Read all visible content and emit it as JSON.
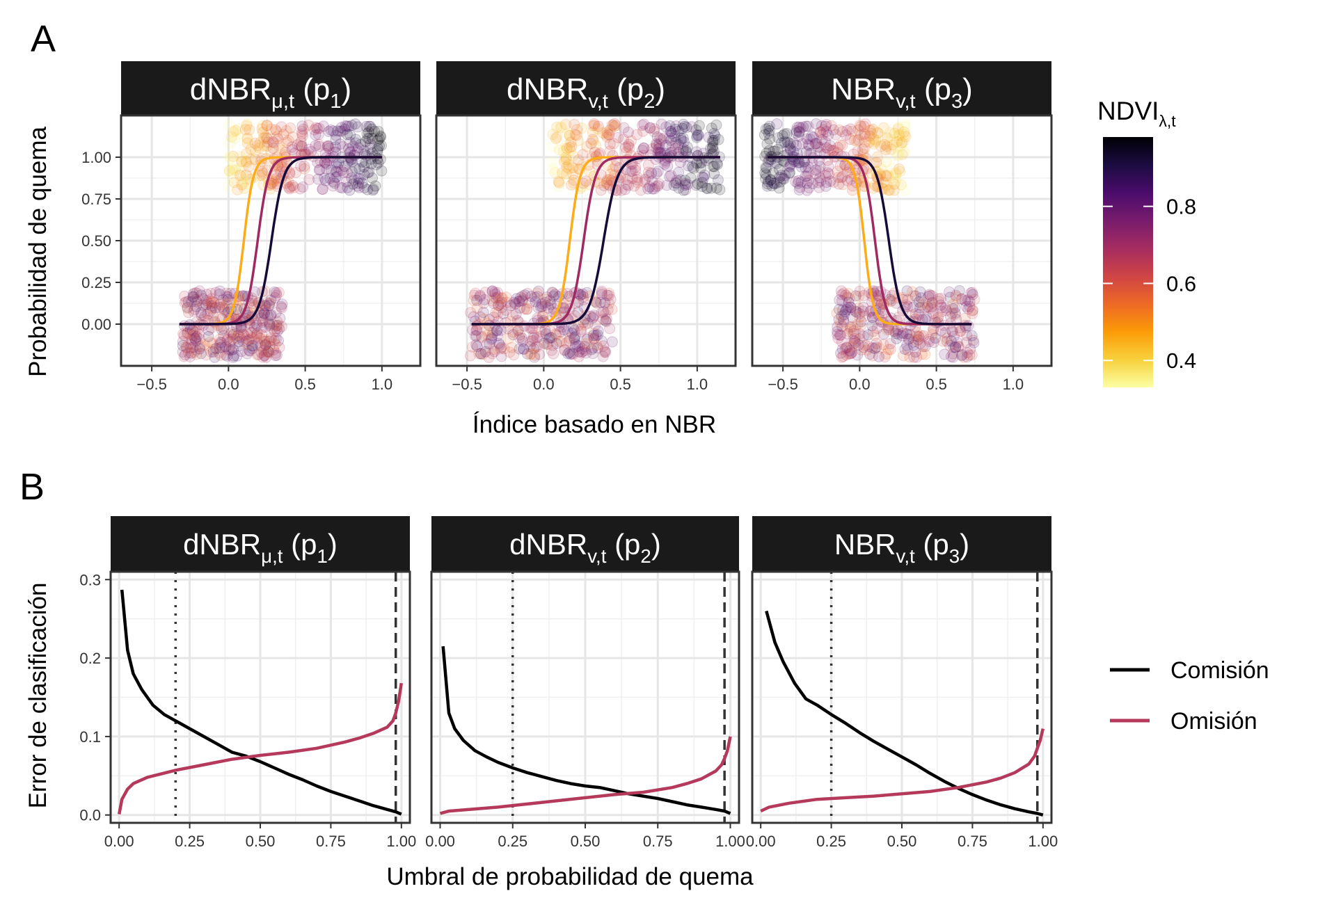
{
  "chart_data": [
    {
      "panel": "A",
      "type": "scatter",
      "xlabel": "Índice basado en NBR",
      "ylabel": "Probabilidad de quema",
      "xlim": [
        -0.7,
        1.25
      ],
      "ylim": [
        -0.25,
        1.25
      ],
      "x_ticks": [
        -0.5,
        0.0,
        0.5,
        1.0
      ],
      "x_tick_labels": [
        "−0.5",
        "0.0",
        "0.5",
        "1.0"
      ],
      "y_ticks": [
        0.0,
        0.25,
        0.5,
        0.75,
        1.0
      ],
      "y_tick_labels": [
        "0.00",
        "0.25",
        "0.50",
        "0.75",
        "1.00"
      ],
      "grid": true,
      "color_scale": {
        "title_main": "NDVI",
        "title_sub": "λ,t",
        "palette": "inferno",
        "min": 0.33,
        "max": 0.98,
        "ticks": [
          0.4,
          0.6,
          0.8
        ],
        "tick_labels": [
          "0.4",
          "0.6",
          "0.8"
        ],
        "stops": [
          "#FCFFA4",
          "#F7D13D",
          "#FB9B06",
          "#ED6925",
          "#CF4446",
          "#A52C60",
          "#781C6D",
          "#4A0C6B",
          "#1B0C41",
          "#000004"
        ]
      },
      "facets": [
        {
          "label_main": "dNBR",
          "label_sub": "μ,t",
          "label_tail": " (p",
          "label_index": "1",
          "label_close": ")",
          "direction": "increasing",
          "burned_range": [
            0.0,
            1.0
          ],
          "unburned_range": [
            -0.3,
            0.35
          ],
          "curves": [
            {
              "ndvi": 0.45,
              "x": [
                -0.32,
                1.0
              ],
              "midpoint": 0.1,
              "slope": 32
            },
            {
              "ndvi": 0.7,
              "x": [
                -0.32,
                1.0
              ],
              "midpoint": 0.19,
              "slope": 28
            },
            {
              "ndvi": 0.92,
              "x": [
                -0.32,
                1.0
              ],
              "midpoint": 0.28,
              "slope": 25
            }
          ]
        },
        {
          "label_main": "dNBR",
          "label_sub": "v,t",
          "label_tail": " (p",
          "label_index": "2",
          "label_close": ")",
          "direction": "increasing",
          "burned_range": [
            0.05,
            1.15
          ],
          "unburned_range": [
            -0.48,
            0.45
          ],
          "curves": [
            {
              "ndvi": 0.45,
              "x": [
                -0.47,
                1.15
              ],
              "midpoint": 0.17,
              "slope": 30
            },
            {
              "ndvi": 0.7,
              "x": [
                -0.47,
                1.15
              ],
              "midpoint": 0.26,
              "slope": 26
            },
            {
              "ndvi": 0.92,
              "x": [
                -0.47,
                1.15
              ],
              "midpoint": 0.39,
              "slope": 22
            }
          ]
        },
        {
          "label_main": "NBR",
          "label_sub": "v,t",
          "label_tail": " (p",
          "label_index": "3",
          "label_close": ")",
          "direction": "decreasing",
          "burned_range": [
            -0.62,
            0.3
          ],
          "unburned_range": [
            -0.15,
            0.75
          ],
          "curves": [
            {
              "ndvi": 0.45,
              "x": [
                -0.6,
                0.73
              ],
              "midpoint": 0.03,
              "slope": 34
            },
            {
              "ndvi": 0.7,
              "x": [
                -0.6,
                0.73
              ],
              "midpoint": 0.1,
              "slope": 30
            },
            {
              "ndvi": 0.92,
              "x": [
                -0.6,
                0.73
              ],
              "midpoint": 0.19,
              "slope": 26
            }
          ]
        }
      ]
    },
    {
      "panel": "B",
      "type": "line",
      "xlabel": "Umbral de probabilidad de quema",
      "ylabel": "Error de clasificación",
      "xlim": [
        -0.03,
        1.03
      ],
      "ylim": [
        -0.01,
        0.31
      ],
      "x_ticks": [
        0.0,
        0.25,
        0.5,
        0.75,
        1.0
      ],
      "x_tick_labels": [
        "0.00",
        "0.25",
        "0.50",
        "0.75",
        "1.00"
      ],
      "y_ticks": [
        0.0,
        0.1,
        0.2,
        0.3
      ],
      "y_tick_labels": [
        "0.0",
        "0.1",
        "0.2",
        "0.3"
      ],
      "grid": true,
      "legend": {
        "placement": "right",
        "entries": [
          {
            "name": "Comisión",
            "color": "#000000"
          },
          {
            "name": "Omisión",
            "color": "#B5395B"
          }
        ]
      },
      "facets": [
        {
          "label_main": "dNBR",
          "label_sub": "μ,t",
          "label_tail": " (p",
          "label_index": "1",
          "label_close": ")",
          "dotted_x": 0.2,
          "dashed_x": 0.98,
          "series": [
            {
              "name": "Comisión",
              "x": [
                0.01,
                0.03,
                0.05,
                0.08,
                0.12,
                0.16,
                0.2,
                0.25,
                0.3,
                0.35,
                0.4,
                0.45,
                0.5,
                0.55,
                0.6,
                0.65,
                0.7,
                0.75,
                0.8,
                0.85,
                0.9,
                0.95,
                0.98,
                1.0
              ],
              "values": [
                0.287,
                0.21,
                0.18,
                0.16,
                0.14,
                0.128,
                0.12,
                0.11,
                0.1,
                0.09,
                0.08,
                0.075,
                0.068,
                0.06,
                0.052,
                0.045,
                0.037,
                0.03,
                0.024,
                0.018,
                0.012,
                0.007,
                0.004,
                0.001
              ]
            },
            {
              "name": "Omisión",
              "x": [
                0.0,
                0.01,
                0.03,
                0.05,
                0.1,
                0.2,
                0.3,
                0.4,
                0.5,
                0.6,
                0.7,
                0.8,
                0.85,
                0.9,
                0.95,
                0.97,
                0.98,
                0.99,
                1.0
              ],
              "values": [
                0.001,
                0.02,
                0.033,
                0.04,
                0.048,
                0.057,
                0.064,
                0.071,
                0.076,
                0.08,
                0.085,
                0.093,
                0.098,
                0.104,
                0.112,
                0.12,
                0.13,
                0.145,
                0.168
              ]
            }
          ]
        },
        {
          "label_main": "dNBR",
          "label_sub": "v,t",
          "label_tail": " (p",
          "label_index": "2",
          "label_close": ")",
          "dotted_x": 0.25,
          "dashed_x": 0.98,
          "series": [
            {
              "name": "Comisión",
              "x": [
                0.01,
                0.03,
                0.05,
                0.08,
                0.12,
                0.16,
                0.2,
                0.25,
                0.3,
                0.35,
                0.4,
                0.45,
                0.5,
                0.55,
                0.6,
                0.65,
                0.7,
                0.75,
                0.8,
                0.85,
                0.9,
                0.95,
                0.98,
                1.0
              ],
              "values": [
                0.215,
                0.13,
                0.11,
                0.095,
                0.082,
                0.074,
                0.067,
                0.06,
                0.054,
                0.049,
                0.044,
                0.04,
                0.037,
                0.035,
                0.031,
                0.027,
                0.024,
                0.021,
                0.017,
                0.013,
                0.01,
                0.007,
                0.005,
                0.002
              ]
            },
            {
              "name": "Omisión",
              "x": [
                0.0,
                0.03,
                0.1,
                0.2,
                0.3,
                0.4,
                0.5,
                0.6,
                0.7,
                0.8,
                0.85,
                0.9,
                0.95,
                0.97,
                0.98,
                0.99,
                1.0
              ],
              "values": [
                0.002,
                0.005,
                0.007,
                0.01,
                0.014,
                0.018,
                0.022,
                0.026,
                0.029,
                0.035,
                0.04,
                0.046,
                0.056,
                0.064,
                0.072,
                0.082,
                0.1
              ]
            }
          ]
        },
        {
          "label_main": "NBR",
          "label_sub": "v,t",
          "label_tail": " (p",
          "label_index": "3",
          "label_close": ")",
          "dotted_x": 0.25,
          "dashed_x": 0.98,
          "series": [
            {
              "name": "Comisión",
              "x": [
                0.02,
                0.05,
                0.08,
                0.12,
                0.16,
                0.2,
                0.25,
                0.3,
                0.35,
                0.4,
                0.45,
                0.5,
                0.55,
                0.6,
                0.65,
                0.7,
                0.75,
                0.8,
                0.85,
                0.9,
                0.95,
                0.98,
                1.0
              ],
              "values": [
                0.26,
                0.22,
                0.195,
                0.168,
                0.148,
                0.14,
                0.128,
                0.117,
                0.105,
                0.094,
                0.084,
                0.074,
                0.064,
                0.053,
                0.043,
                0.034,
                0.026,
                0.019,
                0.013,
                0.008,
                0.004,
                0.002,
                0.0
              ]
            },
            {
              "name": "Omisión",
              "x": [
                0.0,
                0.03,
                0.1,
                0.2,
                0.3,
                0.4,
                0.5,
                0.6,
                0.7,
                0.8,
                0.85,
                0.9,
                0.95,
                0.97,
                0.98,
                0.99,
                1.0
              ],
              "values": [
                0.005,
                0.01,
                0.015,
                0.02,
                0.022,
                0.024,
                0.027,
                0.03,
                0.035,
                0.042,
                0.047,
                0.054,
                0.065,
                0.075,
                0.085,
                0.095,
                0.11
              ]
            }
          ]
        }
      ]
    }
  ]
}
